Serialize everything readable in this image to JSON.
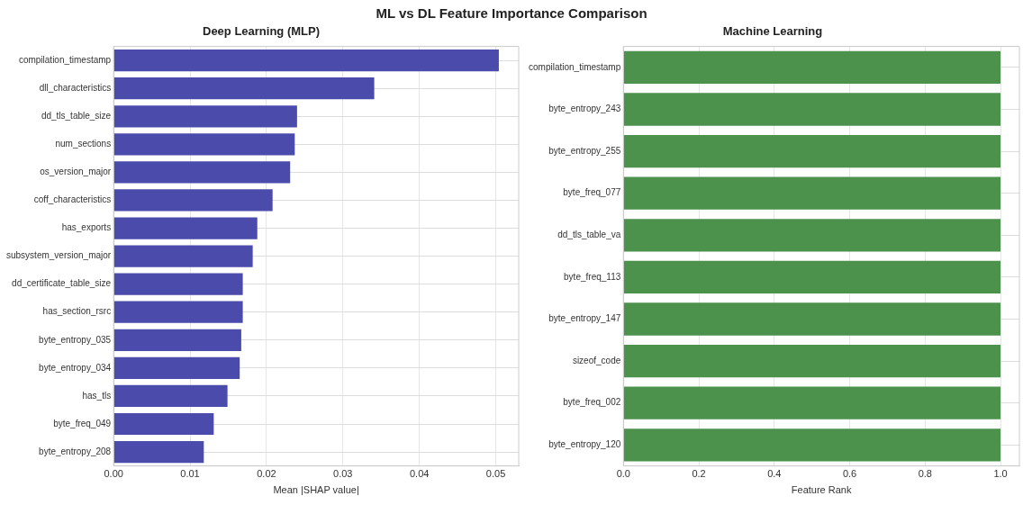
{
  "chart_data": [
    {
      "type": "bar",
      "orientation": "horizontal",
      "title": "ML vs DL Feature Importance Comparison",
      "subtitle": "Deep Learning (MLP)",
      "xlabel": "Mean |SHAP value|",
      "categories": [
        "compilation_timestamp",
        "dll_characteristics",
        "dd_tls_table_size",
        "num_sections",
        "os_version_major",
        "coff_characteristics",
        "has_exports",
        "subsystem_version_major",
        "dd_certificate_table_size",
        "has_section_rsrc",
        "byte_entropy_035",
        "byte_entropy_034",
        "has_tls",
        "byte_freq_049",
        "byte_entropy_208"
      ],
      "values": [
        0.0504,
        0.0341,
        0.024,
        0.0237,
        0.0231,
        0.0208,
        0.0188,
        0.0182,
        0.0169,
        0.0169,
        0.0167,
        0.0165,
        0.0149,
        0.0131,
        0.0118
      ],
      "color": "#4b4bab",
      "xlim": [
        0,
        0.053
      ],
      "xticks": [
        {
          "value": 0,
          "label": "0.00"
        },
        0.01,
        0.02,
        0.03,
        0.04,
        0.05
      ],
      "grid": true
    },
    {
      "type": "bar",
      "orientation": "horizontal",
      "subtitle": "Machine Learning",
      "xlabel": "Feature Rank",
      "categories": [
        "compilation_timestamp",
        "byte_entropy_243",
        "byte_entropy_255",
        "byte_freq_077",
        "dd_tls_table_va",
        "byte_freq_113",
        "byte_entropy_147",
        "sizeof_code",
        "byte_freq_002",
        "byte_entropy_120"
      ],
      "values": [
        1,
        1,
        1,
        1,
        1,
        1,
        1,
        1,
        1,
        1
      ],
      "color": "#4c914c",
      "xlim": [
        0,
        1.05
      ],
      "xticks": [
        {
          "value": 0,
          "label": "0.0"
        },
        {
          "value": 0.2,
          "label": "0.2"
        },
        {
          "value": 0.4,
          "label": "0.4"
        },
        {
          "value": 0.6,
          "label": "0.6"
        },
        {
          "value": 0.8,
          "label": "0.8"
        },
        {
          "value": 1,
          "label": "1.0"
        }
      ],
      "grid": true
    }
  ]
}
